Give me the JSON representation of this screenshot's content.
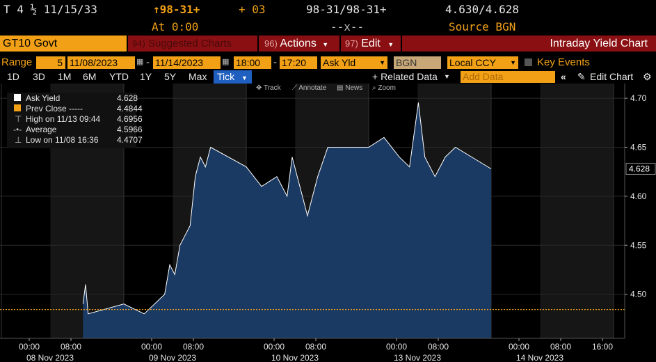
{
  "header": {
    "security": "T 4 ½ 11/15/33",
    "price": "↑98-31+",
    "change": "+ 03",
    "bid_ask": "98-31/98-31+",
    "yields": "4.630/4.628",
    "at_time": "At 0:00",
    "x_marker": "--x--",
    "source": "Source BGN"
  },
  "title_bar": {
    "ticker": "GT10 Govt",
    "suggested_num": "94)",
    "suggested": "Suggested Charts",
    "actions_num": "96)",
    "actions": "Actions",
    "edit_num": "97)",
    "edit": "Edit",
    "chart_title": "Intraday Yield Chart"
  },
  "range_row": {
    "range_label": "Range",
    "interval": "5",
    "start_date": "11/08/2023",
    "end_date": "11/14/2023",
    "start_time": "18:00",
    "end_time": "17:20",
    "field": "Ask Yld",
    "source": "BGN",
    "currency": "Local CCY",
    "key_events": "Key Events"
  },
  "period_row": {
    "periods": [
      "1D",
      "3D",
      "1M",
      "6M",
      "YTD",
      "1Y",
      "5Y",
      "Max"
    ],
    "tick": "Tick",
    "related": "+ Related Data",
    "add_data_placeholder": "Add Data",
    "edit_chart": "Edit Chart"
  },
  "toolbar": {
    "track": "Track",
    "annotate": "Annotate",
    "news": "News",
    "zoom": "Zoom"
  },
  "legend": {
    "ask_yield_label": "Ask Yield",
    "ask_yield_value": "4.628",
    "prev_close_label": "Prev Close -----",
    "prev_close_value": "4.4844",
    "high_label": "High on 11/13 09:44",
    "high_value": "4.6956",
    "average_label": "Average",
    "average_value": "4.5966",
    "low_label": "Low on 11/08 16:36",
    "low_value": "4.4707"
  },
  "colors": {
    "amber": "#f2a116",
    "red": "#8a0f12",
    "area_fill": "#1a3a63",
    "line": "#ffffff",
    "prev_close": "#f2a116"
  },
  "chart_data": {
    "type": "area",
    "series": [
      {
        "name": "Ask Yield",
        "x": [
          "11/08 16:00",
          "11/08 16:30",
          "11/08 17:00",
          "11/09 00:00",
          "11/09 04:00",
          "11/09 08:00",
          "11/09 09:00",
          "11/09 10:00",
          "11/09 11:00",
          "11/09 12:00",
          "11/09 13:00",
          "11/09 14:00",
          "11/09 15:00",
          "11/09 16:00",
          "11/09 17:00",
          "11/10 00:00",
          "11/10 03:00",
          "11/10 06:00",
          "11/10 08:00",
          "11/10 09:00",
          "11/10 10:00",
          "11/10 11:00",
          "11/10 12:00",
          "11/10 13:00",
          "11/10 14:00",
          "11/10 16:00",
          "11/13 00:00",
          "11/13 03:00",
          "11/13 06:00",
          "11/13 08:00",
          "11/13 09:44",
          "11/13 11:00",
          "11/13 13:00",
          "11/13 15:00",
          "11/13 17:00",
          "11/14 00:00"
        ],
        "values": [
          4.49,
          4.51,
          4.48,
          4.49,
          4.48,
          4.5,
          4.53,
          4.52,
          4.55,
          4.56,
          4.57,
          4.62,
          4.64,
          4.63,
          4.65,
          4.63,
          4.61,
          4.62,
          4.6,
          4.64,
          4.62,
          4.6,
          4.58,
          4.6,
          4.62,
          4.65,
          4.65,
          4.66,
          4.64,
          4.63,
          4.6956,
          4.64,
          4.62,
          4.64,
          4.65,
          4.628
        ]
      }
    ],
    "prev_close": 4.4844,
    "y_ticks": [
      "4.70",
      "4.65",
      "4.60",
      "4.55",
      "4.50"
    ],
    "ylim": [
      4.455,
      4.715
    ],
    "x_ticks": [
      "00:00",
      "08:00",
      "00:00",
      "08:00",
      "00:00",
      "08:00",
      "00:00",
      "08:00",
      "00:00",
      "08:00",
      "16:00"
    ],
    "date_labels": [
      "08 Nov 2023",
      "09 Nov 2023",
      "10 Nov 2023",
      "13 Nov 2023",
      "14 Nov 2023"
    ],
    "last_value_label": "4.628"
  }
}
